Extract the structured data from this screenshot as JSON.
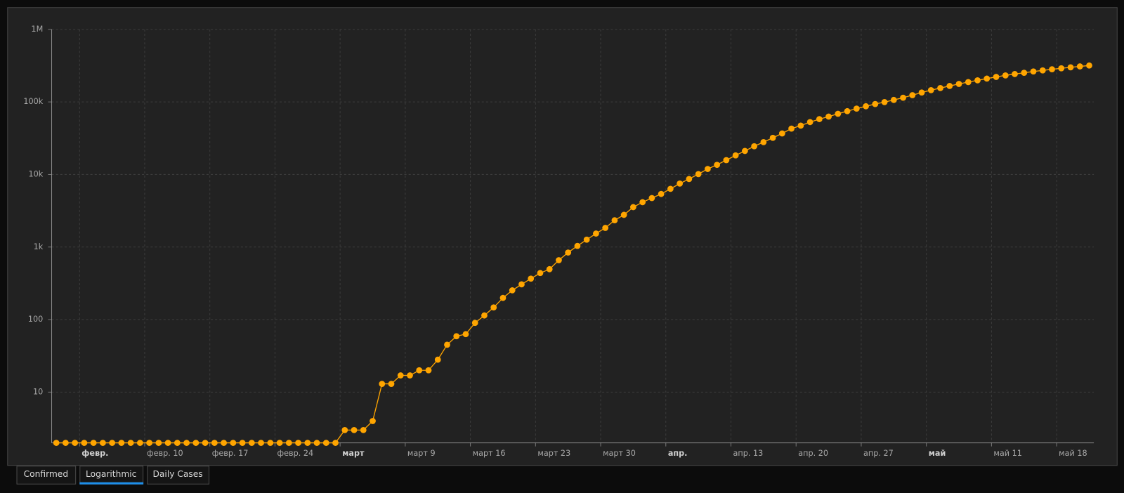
{
  "chart_data": {
    "type": "line",
    "log_scale": true,
    "grid": true,
    "color": "#ffa500",
    "x": [
      "01-31",
      "02-01",
      "02-02",
      "02-03",
      "02-04",
      "02-05",
      "02-06",
      "02-07",
      "02-08",
      "02-09",
      "02-10",
      "02-11",
      "02-12",
      "02-13",
      "02-14",
      "02-15",
      "02-16",
      "02-17",
      "02-18",
      "02-19",
      "02-20",
      "02-21",
      "02-22",
      "02-23",
      "02-24",
      "02-25",
      "02-26",
      "02-27",
      "02-28",
      "02-29",
      "03-01",
      "03-02",
      "03-03",
      "03-04",
      "03-05",
      "03-06",
      "03-07",
      "03-08",
      "03-09",
      "03-10",
      "03-11",
      "03-12",
      "03-13",
      "03-14",
      "03-15",
      "03-16",
      "03-17",
      "03-18",
      "03-19",
      "03-20",
      "03-21",
      "03-22",
      "03-23",
      "03-24",
      "03-25",
      "03-26",
      "03-27",
      "03-28",
      "03-29",
      "03-30",
      "03-31",
      "04-01",
      "04-02",
      "04-03",
      "04-04",
      "04-05",
      "04-06",
      "04-07",
      "04-08",
      "04-09",
      "04-10",
      "04-11",
      "04-12",
      "04-13",
      "04-14",
      "04-15",
      "04-16",
      "04-17",
      "04-18",
      "04-19",
      "04-20",
      "04-21",
      "04-22",
      "04-23",
      "04-24",
      "04-25",
      "04-26",
      "04-27",
      "04-28",
      "04-29",
      "04-30",
      "05-01",
      "05-02",
      "05-03",
      "05-04",
      "05-05",
      "05-06",
      "05-07",
      "05-08",
      "05-09",
      "05-10",
      "05-11",
      "05-12",
      "05-13",
      "05-14",
      "05-15",
      "05-16",
      "05-17",
      "05-18",
      "05-19",
      "05-20",
      "05-21"
    ],
    "values": [
      2,
      2,
      2,
      2,
      2,
      2,
      2,
      2,
      2,
      2,
      2,
      2,
      2,
      2,
      2,
      2,
      2,
      2,
      2,
      2,
      2,
      2,
      2,
      2,
      2,
      2,
      2,
      2,
      2,
      2,
      2,
      3,
      3,
      3,
      4,
      13,
      13,
      17,
      17,
      20,
      20,
      28,
      45,
      59,
      63,
      90,
      114,
      147,
      199,
      253,
      306,
      367,
      438,
      495,
      658,
      840,
      1036,
      1264,
      1534,
      1836,
      2337,
      2777,
      3548,
      4149,
      4731,
      5389,
      6343,
      7497,
      8672,
      10131,
      11917,
      13584,
      15770,
      18328,
      21102,
      24490,
      27938,
      32008,
      36793,
      42853,
      47121,
      52763,
      57999,
      62773,
      68622,
      74588,
      80949,
      87147,
      93558,
      99399,
      106498,
      114431,
      124054,
      134687,
      145268,
      155370,
      165929,
      177160,
      187859,
      198676,
      209688,
      221344,
      232243,
      242271,
      252245,
      262843,
      272043,
      281752,
      290678,
      299941,
      308705,
      317554
    ],
    "xlim": [
      "01-31",
      "05-22"
    ],
    "xticks": [
      {
        "value": "02-03",
        "label": "февр."
      },
      {
        "value": "02-10",
        "label": "февр. 10"
      },
      {
        "value": "02-17",
        "label": "февр. 17"
      },
      {
        "value": "02-24",
        "label": "февр. 24"
      },
      {
        "value": "03-02",
        "label": "март"
      },
      {
        "value": "03-09",
        "label": "март 9"
      },
      {
        "value": "03-16",
        "label": "март 16"
      },
      {
        "value": "03-23",
        "label": "март 23"
      },
      {
        "value": "03-30",
        "label": "март 30"
      },
      {
        "value": "04-06",
        "label": "апр."
      },
      {
        "value": "04-13",
        "label": "апр. 13"
      },
      {
        "value": "04-20",
        "label": "апр. 20"
      },
      {
        "value": "04-27",
        "label": "апр. 27"
      },
      {
        "value": "05-04",
        "label": "май"
      },
      {
        "value": "05-11",
        "label": "май 11"
      },
      {
        "value": "05-18",
        "label": "май 18"
      }
    ],
    "ylim": [
      2,
      1000000
    ],
    "yticks": [
      10,
      100,
      {
        "value": 1000,
        "label": "1k"
      },
      {
        "value": 10000,
        "label": "10k"
      },
      {
        "value": 100000,
        "label": "100k"
      },
      {
        "value": 1000000,
        "label": "1M"
      }
    ]
  },
  "tabs": [
    {
      "label": "Confirmed",
      "active": false
    },
    {
      "label": "Logarithmic",
      "active": true
    },
    {
      "label": "Daily Cases",
      "active": false
    }
  ]
}
